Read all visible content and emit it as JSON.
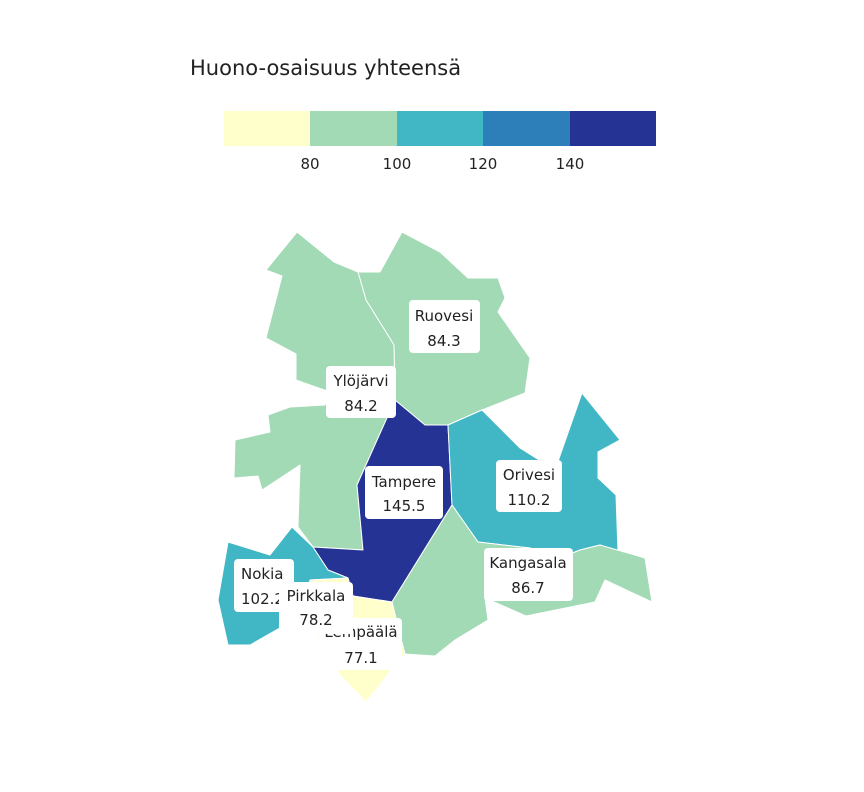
{
  "legend": {
    "title": "Huono-osaisuus yhteensä",
    "colors": [
      "#ffffcc",
      "#a1dab4",
      "#41b6c4",
      "#2c7fb8",
      "#253494"
    ],
    "ticks": [
      "80",
      "100",
      "120",
      "140"
    ]
  },
  "municipalities": [
    {
      "id": "ruovesi",
      "name": "Ruovesi",
      "value": "84.3",
      "color": "#a1dab4"
    },
    {
      "id": "ylojarvi",
      "name": "Ylöjärvi",
      "value": "84.2",
      "color": "#a1dab4"
    },
    {
      "id": "tampere",
      "name": "Tampere",
      "value": "145.5",
      "color": "#253494"
    },
    {
      "id": "orivesi",
      "name": "Orivesi",
      "value": "110.2",
      "color": "#41b6c4"
    },
    {
      "id": "kangasala",
      "name": "Kangasala",
      "value": "86.7",
      "color": "#a1dab4"
    },
    {
      "id": "nokia",
      "name": "Nokia",
      "value": "102.2",
      "color": "#41b6c4"
    },
    {
      "id": "pirkkala",
      "name": "Pirkkala",
      "value": "78.2",
      "color": "#ffffcc"
    },
    {
      "id": "lempaala",
      "name": "Lempäälä",
      "value": "77.1",
      "color": "#ffffcc"
    }
  ]
}
